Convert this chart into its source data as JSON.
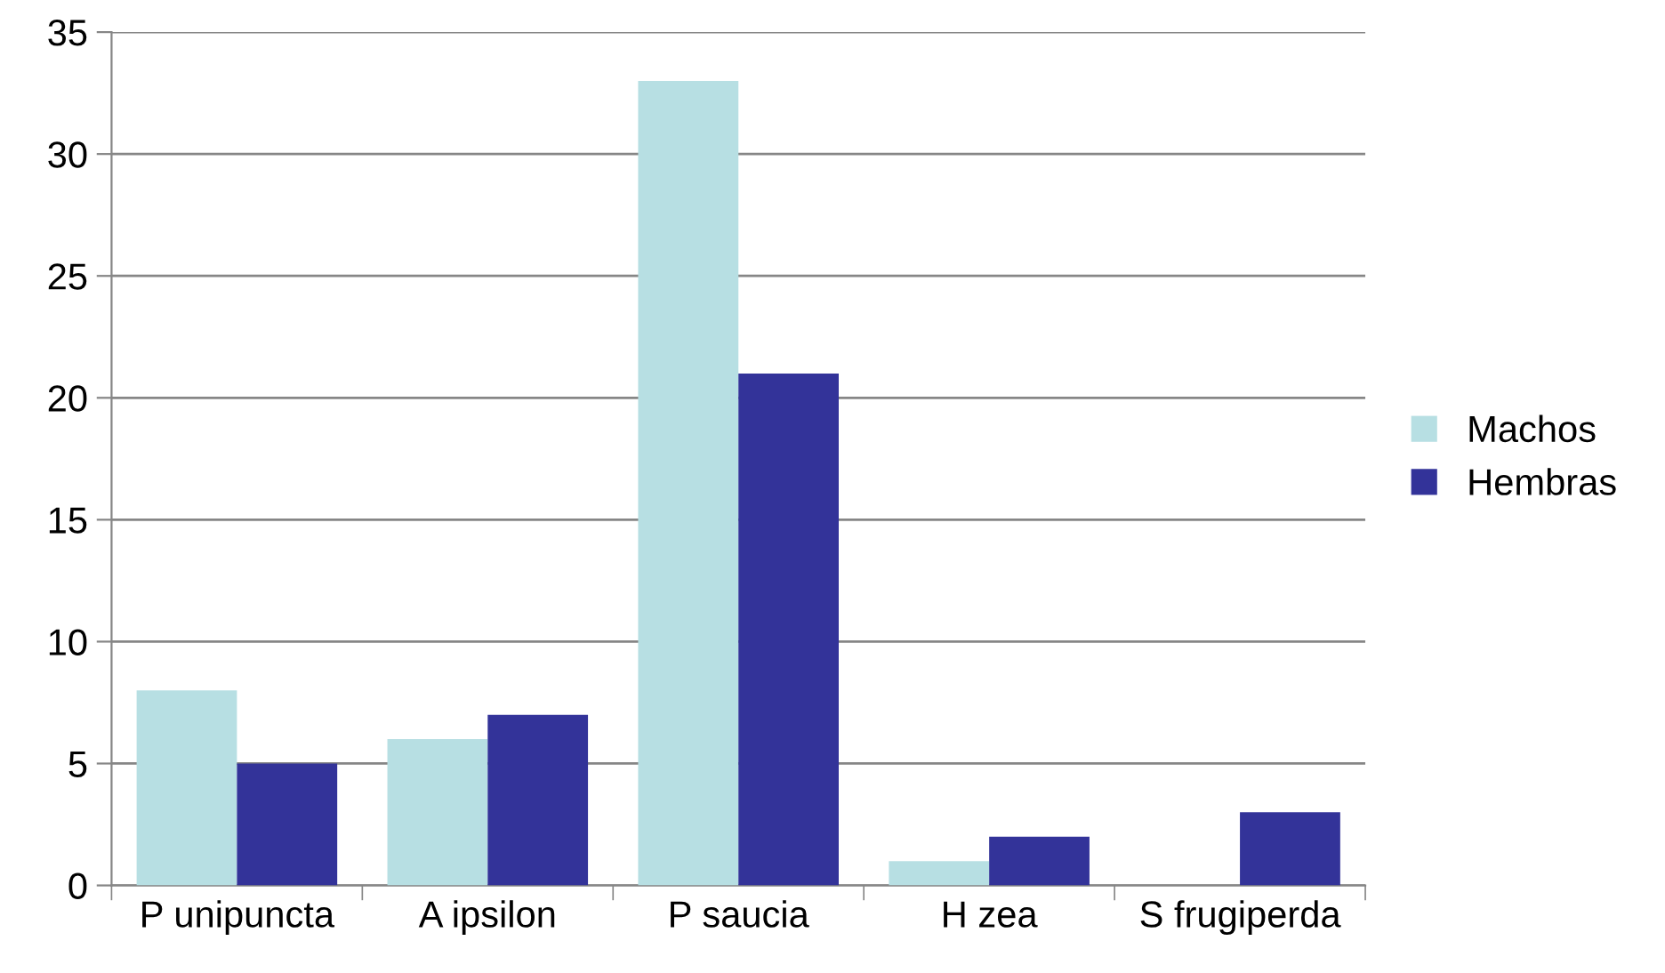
{
  "chart_data": {
    "type": "bar",
    "categories": [
      "P unipuncta",
      "A ipsilon",
      "P saucia",
      "H zea",
      "S frugiperda"
    ],
    "series": [
      {
        "name": "Machos",
        "color": "#b7dfe3",
        "values": [
          8,
          6,
          33,
          1,
          0
        ]
      },
      {
        "name": "Hembras",
        "color": "#333399",
        "values": [
          5,
          7,
          21,
          2,
          3
        ]
      }
    ],
    "ylim": [
      0,
      35
    ],
    "yticks": [
      0,
      5,
      10,
      15,
      20,
      25,
      30,
      35
    ],
    "grid": "y",
    "legend": "right"
  }
}
